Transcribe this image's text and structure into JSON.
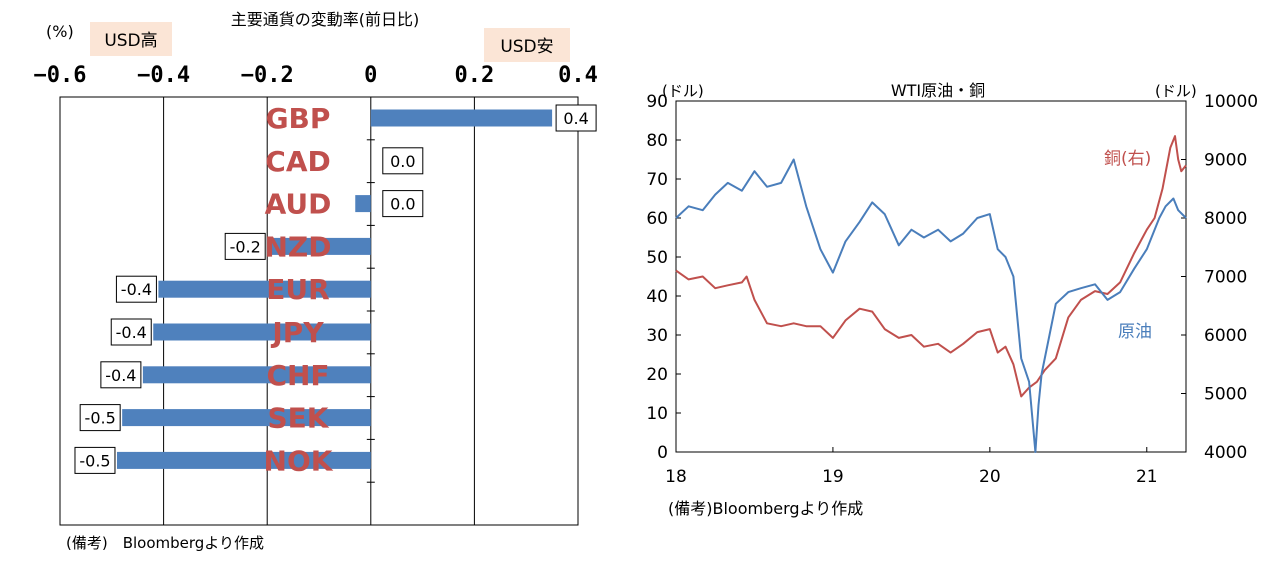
{
  "chart_data": [
    {
      "type": "bar",
      "orientation": "horizontal",
      "title": "主要通貨の変動率(前日比)",
      "unit_label": "(%)",
      "left_note": "USD高",
      "right_note": "USD安",
      "footnote": "(備考)　Bloombergより作成",
      "xlim": [
        -0.6,
        0.4
      ],
      "x_ticks": [
        -0.6,
        -0.4,
        -0.2,
        0,
        0.2,
        0.4
      ],
      "x_tick_labels": [
        "−0.6",
        "−0.4",
        "−0.2",
        "0",
        "0.2",
        "0.4"
      ],
      "categories": [
        "GBP",
        "CAD",
        "AUD",
        "NZD",
        "EUR",
        "JPY",
        "CHF",
        "SEK",
        "NOK"
      ],
      "values": [
        0.35,
        0.0,
        -0.03,
        -0.2,
        -0.41,
        -0.42,
        -0.44,
        -0.48,
        -0.49
      ],
      "value_labels": [
        "0.4",
        "0.0",
        "0.0",
        "-0.2",
        "-0.4",
        "-0.4",
        "-0.4",
        "-0.5",
        "-0.5"
      ],
      "bar_color": "#4f81bd",
      "category_color": "#c0504d",
      "note_bg": "#fbe5d6"
    },
    {
      "type": "line",
      "title": "WTI原油・銅",
      "left_unit": "(ドル)",
      "right_unit": "(ドル)",
      "footnote": "(備考)Bloombergより作成",
      "x_tick_labels": [
        "18",
        "19",
        "20",
        "21"
      ],
      "x_ticks": [
        2018,
        2019,
        2020,
        2021
      ],
      "xlim": [
        2018,
        2021.25
      ],
      "ylim_left": [
        0,
        90
      ],
      "y_ticks_left": [
        0,
        10,
        20,
        30,
        40,
        50,
        60,
        70,
        80,
        90
      ],
      "ylim_right": [
        4000,
        10000
      ],
      "y_ticks_right": [
        4000,
        5000,
        6000,
        7000,
        8000,
        9000,
        10000
      ],
      "series": [
        {
          "name": "原油",
          "axis": "left",
          "color": "#4a7ebb",
          "x": [
            2018.0,
            2018.08,
            2018.17,
            2018.25,
            2018.33,
            2018.42,
            2018.5,
            2018.58,
            2018.67,
            2018.75,
            2018.83,
            2018.92,
            2019.0,
            2019.08,
            2019.17,
            2019.25,
            2019.33,
            2019.42,
            2019.5,
            2019.58,
            2019.67,
            2019.75,
            2019.83,
            2019.92,
            2020.0,
            2020.05,
            2020.1,
            2020.15,
            2020.2,
            2020.25,
            2020.29,
            2020.31,
            2020.33,
            2020.38,
            2020.42,
            2020.5,
            2020.58,
            2020.67,
            2020.75,
            2020.83,
            2020.92,
            2021.0,
            2021.08,
            2021.12,
            2021.17,
            2021.2,
            2021.25
          ],
          "y": [
            60,
            63,
            62,
            66,
            69,
            67,
            72,
            68,
            69,
            75,
            63,
            52,
            46,
            54,
            59,
            64,
            61,
            53,
            57,
            55,
            57,
            54,
            56,
            60,
            61,
            52,
            50,
            45,
            24,
            18,
            0,
            12,
            20,
            30,
            38,
            41,
            42,
            43,
            39,
            41,
            47,
            52,
            60,
            63,
            65,
            62,
            60
          ]
        },
        {
          "name": "銅(右)",
          "axis": "right",
          "color": "#c0504d",
          "x": [
            2018.0,
            2018.08,
            2018.17,
            2018.25,
            2018.33,
            2018.42,
            2018.45,
            2018.5,
            2018.58,
            2018.67,
            2018.75,
            2018.83,
            2018.92,
            2019.0,
            2019.08,
            2019.17,
            2019.25,
            2019.33,
            2019.42,
            2019.5,
            2019.58,
            2019.67,
            2019.75,
            2019.83,
            2019.92,
            2020.0,
            2020.05,
            2020.1,
            2020.15,
            2020.2,
            2020.25,
            2020.3,
            2020.35,
            2020.42,
            2020.5,
            2020.58,
            2020.67,
            2020.75,
            2020.83,
            2020.92,
            2021.0,
            2021.05,
            2021.1,
            2021.15,
            2021.18,
            2021.2,
            2021.22,
            2021.25
          ],
          "y": [
            7100,
            6950,
            7000,
            6800,
            6850,
            6900,
            7000,
            6600,
            6200,
            6150,
            6200,
            6150,
            6150,
            5950,
            6250,
            6450,
            6400,
            6100,
            5950,
            6000,
            5800,
            5850,
            5700,
            5850,
            6050,
            6100,
            5700,
            5800,
            5500,
            4950,
            5100,
            5200,
            5400,
            5600,
            6300,
            6600,
            6750,
            6700,
            6900,
            7400,
            7800,
            8000,
            8500,
            9200,
            9400,
            9000,
            8800,
            8900
          ]
        }
      ]
    }
  ]
}
